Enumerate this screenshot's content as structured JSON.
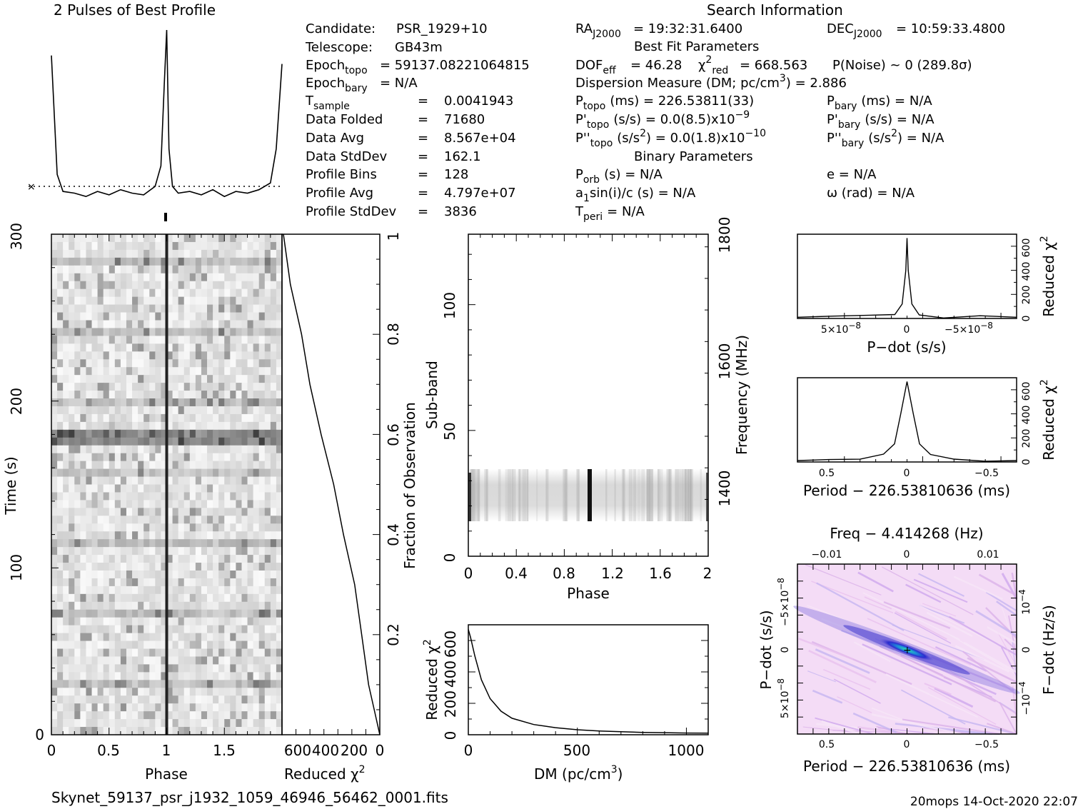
{
  "titles": {
    "profile_title": "2 Pulses of Best Profile",
    "search_title": "Search Information",
    "best_fit_title": "Best Fit Parameters",
    "binary_title": "Binary Parameters",
    "filename": "Skynet_59137_psr_j1932_1059_46946_56462_0001.fits",
    "footer_stamp": "20mops  14-Oct-2020 22:07"
  },
  "info": {
    "candidate_label": "Candidate:",
    "candidate_value": "PSR_1929+10",
    "telescope_label": "Telescope:",
    "telescope_value": "GB43m",
    "epoch_topo": "= 59137.08221064815",
    "epoch_bary": "= N/A",
    "tsample": "0.0041943",
    "data_folded_label": "Data Folded",
    "data_folded": "71680",
    "data_avg_label": "Data Avg",
    "data_avg": "8.567e+04",
    "data_stddev_label": "Data StdDev",
    "data_stddev": "162.1",
    "profile_bins_label": "Profile Bins",
    "profile_bins": "128",
    "profile_avg_label": "Profile Avg",
    "profile_avg": "4.797e+07",
    "profile_stddev_label": "Profile StdDev",
    "profile_stddev": "3836",
    "equals": "=",
    "ra": "= 19:32:31.6400",
    "dec": "= 10:59:33.4800",
    "dof_eff": "= 46.28",
    "chi2_red": "= 668.563",
    "pnoise": "P(Noise) ~ 0    (289.8σ)",
    "dm_line": "Dispersion Measure (DM; pc/cm",
    "dm_value": ") = 2.886",
    "p_topo": "(ms) =  226.53811(33)",
    "p_bary": "(ms) = N/A",
    "pd_topo": "(s/s) = 0.0(8.5)x10",
    "pd_topo_exp": "−9",
    "pd_bary": "(s/s) = N/A",
    "pdd_topo": "(s/s",
    "pdd_topo_rest": ") = 0.0(1.8)x10",
    "pdd_topo_exp": "−10",
    "pdd_bary_rest": ") = N/A",
    "porb": "(s) = N/A",
    "a1sini": "a",
    "a1sini_rest": "sin(i)/c (s) = N/A",
    "tperi": "= N/A",
    "ecc": "e = N/A",
    "omega": "ω (rad) = N/A"
  },
  "axes": {
    "time_label": "Time (s)",
    "phase_label": "Phase",
    "reduced_chi2_label": "Reduced χ",
    "fraction_label": "Fraction of Observation",
    "subband_label": "Sub-band",
    "frequency_label": "Frequency (MHz)",
    "dm_axis_label": "DM (pc/cm",
    "pdot_label": "P−dot (s/s)",
    "period_label": "Period − 226.53810636 (ms)",
    "freq_label": "Freq − 4.414268 (Hz)",
    "fdot_label": "F−dot (Hz/s)",
    "time_ticks": [
      "0",
      "100",
      "200",
      "300"
    ],
    "phase_ticks": [
      "0",
      "0.5",
      "1",
      "1.5"
    ],
    "chi_ticks": [
      "600",
      "400",
      "200",
      "0"
    ],
    "fraction_ticks": [
      "0.2",
      "0.4",
      "0.6",
      "0.8",
      "1"
    ],
    "subband_ticks": [
      "0",
      "50",
      "100"
    ],
    "freq_ticks": [
      "1400",
      "1600",
      "1800"
    ],
    "phase2_ticks": [
      "0",
      "0.4",
      "0.8",
      "1.2",
      "1.6",
      "2"
    ],
    "dm_ticks": [
      "0",
      "500",
      "1000"
    ],
    "dmchi_ticks": [
      "0",
      "200",
      "400",
      "600"
    ],
    "pdot_ticks": [
      "5×10",
      "0",
      "−5×10"
    ],
    "pdot_exp": "−8",
    "period_ticks": [
      "0.5",
      "0",
      "−0.5"
    ],
    "freq_top_ticks": [
      "−0.01",
      "0",
      "0.01"
    ],
    "side_chi_ticks": [
      "0",
      "200",
      "400",
      "600"
    ],
    "pdot_map_ticks": [
      "−5×10",
      "0",
      "5×10"
    ],
    "pdot_map_exp": "−8",
    "fdot_ticks": [
      "10",
      "0",
      "−10"
    ],
    "fdot_exp": "−4"
  },
  "chart_data": [
    {
      "type": "line",
      "title": "2 Pulses of Best Profile",
      "x": [
        0.0,
        0.05,
        0.1,
        0.2,
        0.3,
        0.4,
        0.5,
        0.6,
        0.7,
        0.8,
        0.9,
        0.95,
        0.98,
        1.0,
        1.02,
        1.05,
        1.1,
        1.2,
        1.3,
        1.4,
        1.5,
        1.6,
        1.7,
        1.8,
        1.9,
        1.95,
        2.0
      ],
      "values": [
        0.85,
        0.15,
        0.05,
        0.04,
        0.02,
        0.05,
        0.03,
        0.06,
        0.04,
        0.03,
        0.08,
        0.2,
        0.7,
        1.0,
        0.3,
        0.08,
        0.04,
        0.05,
        0.03,
        0.06,
        0.02,
        0.05,
        0.04,
        0.06,
        0.1,
        0.3,
        0.8
      ]
    },
    {
      "type": "heatmap",
      "xlabel": "Phase",
      "ylabel": "Time (s)",
      "xlim": [
        0,
        2
      ],
      "ylim": [
        0,
        300
      ],
      "pulse_phase": 1.0
    },
    {
      "type": "line",
      "xlabel": "Reduced χ2",
      "ylabel": "Fraction of Observation",
      "xlim": [
        700,
        0
      ],
      "ylim": [
        0,
        1
      ],
      "x": [
        0,
        40,
        80,
        130,
        180,
        260,
        330,
        420,
        500,
        560,
        640,
        690
      ],
      "y": [
        0.0,
        0.05,
        0.1,
        0.2,
        0.3,
        0.4,
        0.5,
        0.6,
        0.7,
        0.8,
        0.9,
        1.0
      ]
    },
    {
      "type": "heatmap",
      "xlabel": "Phase",
      "ylabel": "Sub-band",
      "y2label": "Frequency (MHz)",
      "xlim": [
        0,
        2
      ],
      "ylim": [
        0,
        128
      ],
      "band_rows": [
        15,
        35
      ],
      "pulse_phase": [
        0.0,
        1.0,
        2.0
      ]
    },
    {
      "type": "line",
      "xlabel": "DM (pc/cm3)",
      "ylabel": "Reduced χ2",
      "xlim": [
        0,
        1100
      ],
      "ylim": [
        0,
        700
      ],
      "x": [
        0,
        10,
        30,
        60,
        100,
        150,
        200,
        300,
        400,
        500,
        600,
        700,
        800,
        900,
        1000,
        1100
      ],
      "y": [
        670,
        620,
        500,
        350,
        230,
        150,
        105,
        65,
        45,
        32,
        24,
        19,
        15,
        13,
        11,
        10
      ]
    },
    {
      "type": "line",
      "xlabel": "P-dot (s/s)",
      "ylabel": "Reduced χ2",
      "xlim": [
        9e-08,
        -9e-08
      ],
      "ylim": [
        0,
        700
      ],
      "x": [
        9e-08,
        6e-08,
        3e-08,
        1e-08,
        4e-09,
        1e-09,
        0,
        -1e-09,
        -4e-09,
        -1e-08,
        -3e-08,
        -6e-08,
        -9e-08
      ],
      "y": [
        10,
        12,
        16,
        30,
        120,
        400,
        668,
        400,
        120,
        30,
        16,
        12,
        10
      ]
    },
    {
      "type": "line",
      "xlabel": "Period − 226.53810636 (ms)",
      "ylabel": "Reduced χ2",
      "xlim": [
        0.7,
        -0.7
      ],
      "ylim": [
        0,
        700
      ],
      "x": [
        0.7,
        0.5,
        0.3,
        0.15,
        0.08,
        0.04,
        0.0,
        -0.04,
        -0.08,
        -0.15,
        -0.3,
        -0.5,
        -0.7
      ],
      "y": [
        12,
        15,
        25,
        60,
        150,
        400,
        668,
        400,
        150,
        60,
        25,
        15,
        12
      ]
    },
    {
      "type": "heatmap",
      "xlabel": "Period − 226.53810636 (ms)",
      "ylabel": "P-dot (s/s)",
      "x2label": "Freq − 4.414268 (Hz)",
      "y2label": "F-dot (Hz/s)",
      "xlim": [
        0.7,
        -0.7
      ],
      "ylim": [
        9e-08,
        -9e-08
      ]
    }
  ],
  "colors": {
    "ink": "#000000",
    "map_light": "#f3d8f5",
    "map_mid": "#6a5cd8",
    "map_peak": "#22d1a0"
  }
}
